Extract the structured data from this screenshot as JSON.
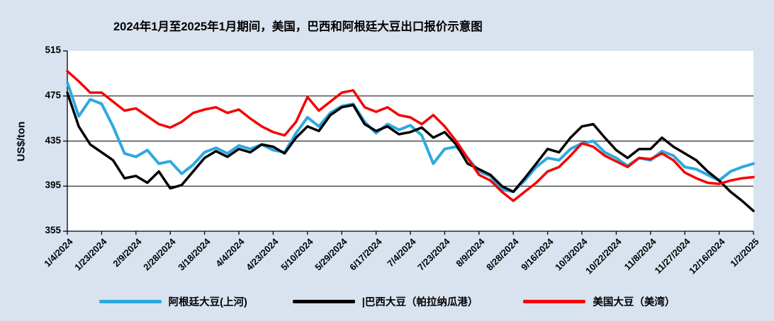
{
  "chart_data": {
    "type": "line",
    "title": "2024年1月至2025年1月期间，美国，巴西和阿根廷大豆出口报价示意图",
    "xlabel": "",
    "ylabel": "US$/ton",
    "ylim": [
      355,
      515
    ],
    "yticks": [
      355,
      395,
      435,
      475,
      515
    ],
    "gridline_values": [
      395,
      435,
      475
    ],
    "legend_position": "bottom",
    "background": "#d9e3f0",
    "plot_background": "#ffffff",
    "categories": [
      "1/4/2024",
      "1/23/2024",
      "2/9/2024",
      "2/28/2024",
      "3/18/2024",
      "4/4/2024",
      "4/23/2024",
      "5/10/2024",
      "5/29/2024",
      "6/17/2024",
      "7/4/2024",
      "7/23/2024",
      "8/9/2024",
      "8/28/2024",
      "9/16/2024",
      "10/3/2024",
      "10/22/2024",
      "11/8/2024",
      "11/27/2024",
      "12/16/2024",
      "1/2/2025"
    ],
    "series": [
      {
        "name": "阿根廷大豆(上河)",
        "color": "#2da9e1",
        "values": [
          487,
          457,
          472,
          468,
          448,
          424,
          421,
          427,
          415,
          417,
          406,
          414,
          425,
          429,
          424,
          431,
          428,
          432,
          427,
          425,
          442,
          456,
          448,
          460,
          466,
          468,
          452,
          442,
          450,
          445,
          449,
          440,
          415,
          428,
          430,
          420,
          408,
          404,
          392,
          390,
          400,
          412,
          420,
          418,
          428,
          433,
          435,
          425,
          420,
          413,
          420,
          418,
          426,
          422,
          412,
          410,
          405,
          400,
          408,
          412,
          415
        ]
      },
      {
        "name": "|巴西大豆（帕拉纳瓜港）",
        "color": "#000000",
        "values": [
          478,
          448,
          432,
          425,
          418,
          402,
          404,
          398,
          408,
          393,
          396,
          408,
          420,
          426,
          421,
          428,
          425,
          432,
          430,
          424,
          438,
          448,
          444,
          458,
          465,
          467,
          450,
          444,
          448,
          441,
          443,
          447,
          438,
          443,
          432,
          415,
          410,
          405,
          395,
          390,
          402,
          415,
          428,
          425,
          438,
          448,
          450,
          438,
          427,
          420,
          428,
          428,
          438,
          430,
          424,
          418,
          408,
          400,
          390,
          382,
          373
        ]
      },
      {
        "name": "美国大豆（美湾）",
        "color": "#f50000",
        "values": [
          497,
          488,
          478,
          478,
          470,
          462,
          464,
          457,
          450,
          447,
          452,
          460,
          463,
          465,
          460,
          463,
          455,
          448,
          443,
          440,
          452,
          474,
          462,
          470,
          478,
          480,
          465,
          461,
          465,
          458,
          456,
          450,
          458,
          448,
          435,
          420,
          405,
          400,
          390,
          382,
          390,
          398,
          408,
          412,
          422,
          433,
          430,
          422,
          417,
          412,
          420,
          419,
          424,
          418,
          407,
          402,
          398,
          397,
          400,
          402,
          403
        ]
      }
    ]
  }
}
